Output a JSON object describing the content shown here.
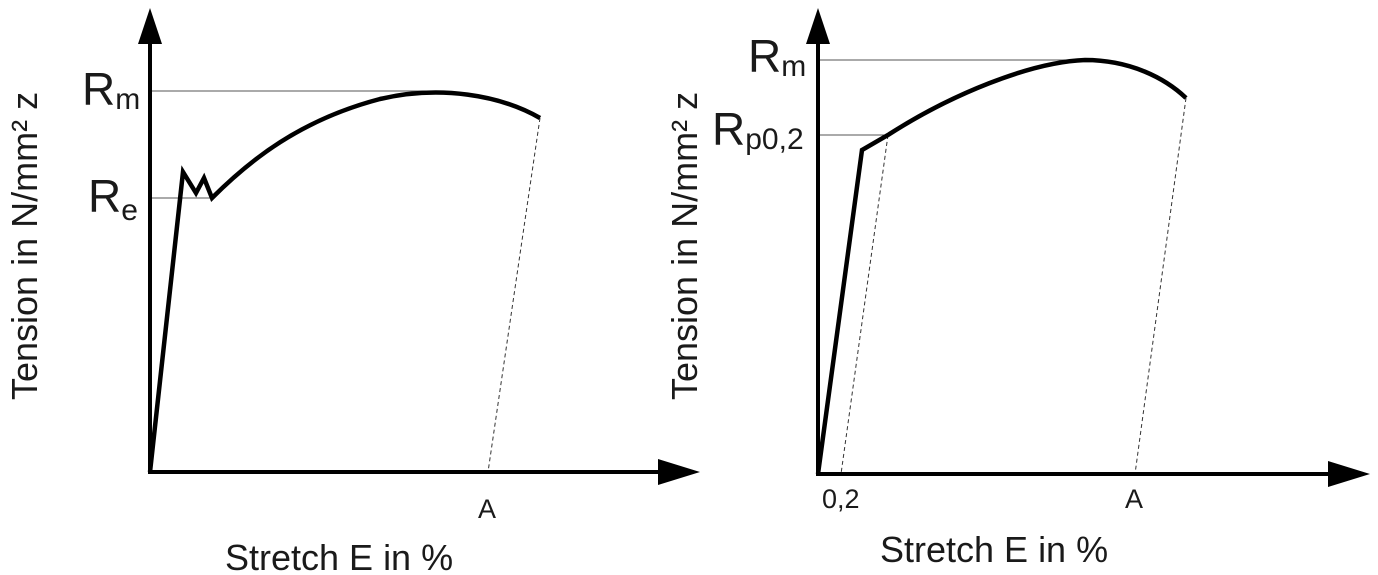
{
  "left_diagram": {
    "y_axis_title": "Tension in N/mm² z",
    "x_axis_title": "Stretch E in %",
    "rm_label": {
      "main": "R",
      "sub": "m"
    },
    "re_label": {
      "main": "R",
      "sub": "e"
    },
    "a_label": "A"
  },
  "right_diagram": {
    "y_axis_title": "Tension in N/mm² z",
    "x_axis_title": "Stretch E in %",
    "rm_label": {
      "main": "R",
      "sub": "m"
    },
    "rp_label": {
      "main": "R",
      "sub": "p0,2"
    },
    "offset_label": "0,2",
    "a_label": "A"
  }
}
